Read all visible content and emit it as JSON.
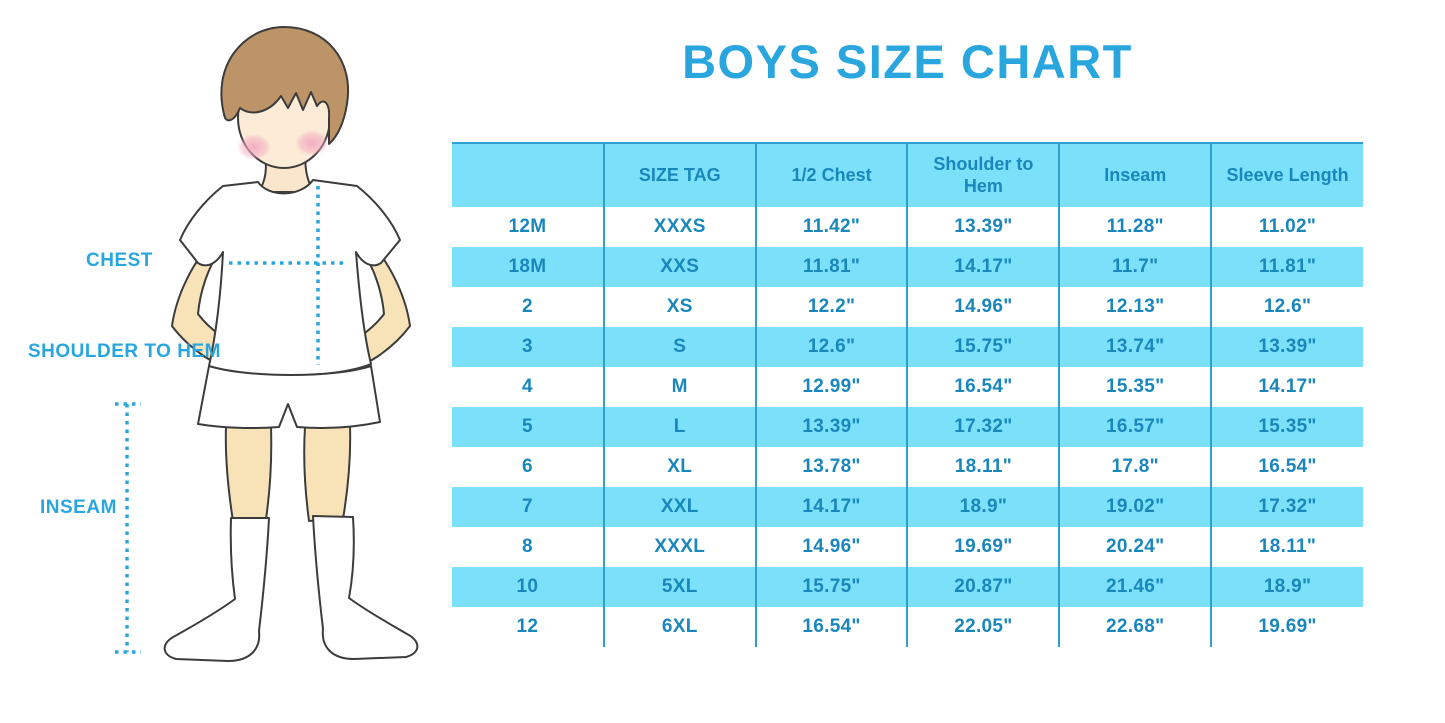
{
  "title": "BOYS SIZE CHART",
  "figure": {
    "labels": {
      "chest": "CHEST",
      "shoulder_to_hem": "SHOULDER TO HEM",
      "inseam": "INSEAM"
    }
  },
  "chart_data": {
    "type": "table",
    "title": "BOYS SIZE CHART",
    "columns": [
      "",
      "SIZE TAG",
      "1/2 Chest",
      "Shoulder to Hem",
      "Inseam",
      "Sleeve Length"
    ],
    "rows": [
      [
        "12M",
        "XXXS",
        "11.42\"",
        "13.39\"",
        "11.28\"",
        "11.02\""
      ],
      [
        "18M",
        "XXS",
        "11.81\"",
        "14.17\"",
        "11.7\"",
        "11.81\""
      ],
      [
        "2",
        "XS",
        "12.2\"",
        "14.96\"",
        "12.13\"",
        "12.6\""
      ],
      [
        "3",
        "S",
        "12.6\"",
        "15.75\"",
        "13.74\"",
        "13.39\""
      ],
      [
        "4",
        "M",
        "12.99\"",
        "16.54\"",
        "15.35\"",
        "14.17\""
      ],
      [
        "5",
        "L",
        "13.39\"",
        "17.32\"",
        "16.57\"",
        "15.35\""
      ],
      [
        "6",
        "XL",
        "13.78\"",
        "18.11\"",
        "17.8\"",
        "16.54\""
      ],
      [
        "7",
        "XXL",
        "14.17\"",
        "18.9\"",
        "19.02\"",
        "17.32\""
      ],
      [
        "8",
        "XXXL",
        "14.96\"",
        "19.69\"",
        "20.24\"",
        "18.11\""
      ],
      [
        "10",
        "5XL",
        "15.75\"",
        "20.87\"",
        "21.46\"",
        "18.9\""
      ],
      [
        "12",
        "6XL",
        "16.54\"",
        "22.05\"",
        "22.68\"",
        "19.69\""
      ]
    ],
    "row_striping": "alternating white and light blue, header light blue",
    "legend_position": "none",
    "grid": "vertical column separators only"
  },
  "colors": {
    "accent_blue": "#29A6DE",
    "row_highlight_blue": "#7BE0FA",
    "table_text_blue": "#1A87BC",
    "table_grid_blue": "#2E9FD0"
  }
}
